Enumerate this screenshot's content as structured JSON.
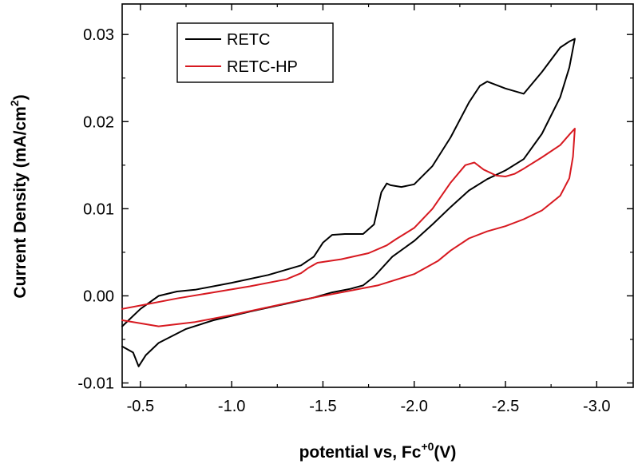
{
  "chart_data": {
    "type": "line",
    "title": "",
    "xlabel": {
      "main": "potential vs, Fc",
      "superscript": "+0",
      "unit": "(V)"
    },
    "ylabel": {
      "main": "Current Density (mA/cm",
      "superscript": "2",
      "close": ")"
    },
    "xlim": [
      -0.4,
      -3.2
    ],
    "ylim": [
      -0.0105,
      0.0335
    ],
    "x_reversed": true,
    "xticks": [
      -0.5,
      -1.0,
      -1.5,
      -2.0,
      -2.5,
      -3.0
    ],
    "xtick_labels": [
      "-0.5",
      "-1.0",
      "-1.5",
      "-2.0",
      "-2.5",
      "-3.0"
    ],
    "yticks": [
      -0.01,
      0.0,
      0.01,
      0.02,
      0.03
    ],
    "ytick_labels": [
      "-0.01",
      "0.00",
      "0.01",
      "0.02",
      "0.03"
    ],
    "grid": false,
    "legend_position": "top-left",
    "series": [
      {
        "name": "RETC",
        "color": "#000000",
        "x": [
          -0.4,
          -0.46,
          -0.49,
          -0.53,
          -0.6,
          -0.75,
          -0.9,
          -1.1,
          -1.3,
          -1.45,
          -1.55,
          -1.65,
          -1.72,
          -1.78,
          -1.88,
          -2.0,
          -2.1,
          -2.2,
          -2.3,
          -2.4,
          -2.5,
          -2.6,
          -2.7,
          -2.8,
          -2.85,
          -2.88,
          -2.88,
          -2.85,
          -2.8,
          -2.7,
          -2.6,
          -2.5,
          -2.4,
          -2.36,
          -2.3,
          -2.2,
          -2.1,
          -2.0,
          -1.93,
          -1.87,
          -1.85,
          -1.82,
          -1.78,
          -1.72,
          -1.62,
          -1.55,
          -1.5,
          -1.45,
          -1.38,
          -1.2,
          -1.0,
          -0.8,
          -0.7,
          -0.6,
          -0.5,
          -0.4
        ],
        "y": [
          -0.0058,
          -0.0065,
          -0.0081,
          -0.0068,
          -0.0054,
          -0.0038,
          -0.0028,
          -0.0018,
          -0.0009,
          -0.0002,
          0.0004,
          0.0008,
          0.0012,
          0.0022,
          0.0045,
          0.0063,
          0.0082,
          0.0102,
          0.0121,
          0.0134,
          0.0144,
          0.0157,
          0.0186,
          0.0228,
          0.0262,
          0.0295,
          0.0295,
          0.0292,
          0.0285,
          0.0257,
          0.0232,
          0.0238,
          0.0246,
          0.0241,
          0.0222,
          0.0182,
          0.0149,
          0.0128,
          0.0125,
          0.0127,
          0.0129,
          0.0119,
          0.0082,
          0.0071,
          0.0071,
          0.007,
          0.0061,
          0.0045,
          0.0035,
          0.0024,
          0.0015,
          0.0007,
          0.0005,
          0.0,
          -0.0015,
          -0.0035
        ]
      },
      {
        "name": "RETC-HP",
        "color": "#d71920",
        "x": [
          -0.4,
          -0.6,
          -0.8,
          -1.0,
          -1.2,
          -1.4,
          -1.6,
          -1.8,
          -2.0,
          -2.13,
          -2.2,
          -2.3,
          -2.4,
          -2.5,
          -2.6,
          -2.7,
          -2.8,
          -2.85,
          -2.87,
          -2.88,
          -2.88,
          -2.85,
          -2.8,
          -2.7,
          -2.6,
          -2.55,
          -2.5,
          -2.45,
          -2.38,
          -2.33,
          -2.28,
          -2.2,
          -2.1,
          -2.0,
          -1.9,
          -1.85,
          -1.75,
          -1.6,
          -1.47,
          -1.42,
          -1.38,
          -1.3,
          -1.1,
          -0.9,
          -0.7,
          -0.5,
          -0.4
        ],
        "y": [
          -0.0028,
          -0.0035,
          -0.003,
          -0.0022,
          -0.0013,
          -0.0004,
          0.0004,
          0.0012,
          0.0025,
          0.004,
          0.0052,
          0.0066,
          0.0074,
          0.008,
          0.0088,
          0.0098,
          0.0115,
          0.0135,
          0.016,
          0.0192,
          0.0192,
          0.0185,
          0.0173,
          0.0159,
          0.0146,
          0.014,
          0.0137,
          0.0138,
          0.0145,
          0.0153,
          0.015,
          0.013,
          0.01,
          0.0078,
          0.0065,
          0.0058,
          0.0049,
          0.0042,
          0.0038,
          0.0032,
          0.0026,
          0.0019,
          0.0011,
          0.0004,
          -0.0003,
          -0.0011,
          -0.0015
        ]
      }
    ]
  }
}
